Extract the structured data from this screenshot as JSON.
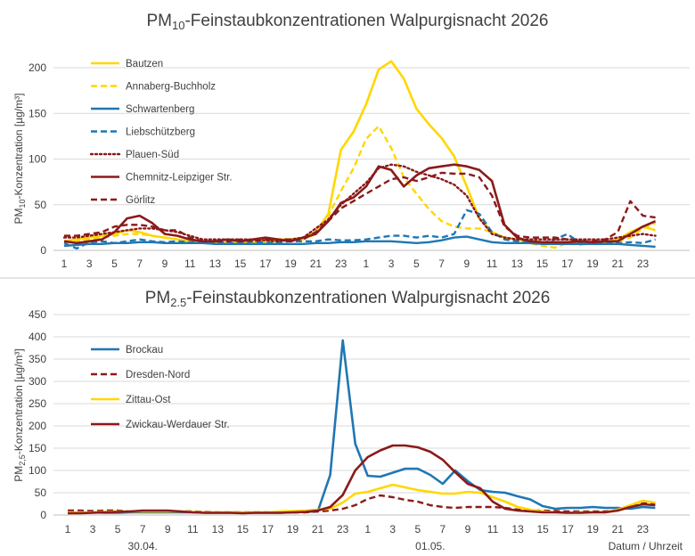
{
  "chart_data": [
    {
      "type": "line",
      "title": "PM",
      "title_sub": "10",
      "title_rest": "-Feinstaubkonzentrationen Walpurgisnacht 2026",
      "ylabel": "PM",
      "ylabel_sub": "10",
      "ylabel_rest": "-Konzentration [µg/m³]",
      "ylim": [
        0,
        200
      ],
      "yticks": [
        "0",
        "50",
        "100",
        "150",
        "200"
      ],
      "xticks": [
        "1",
        "3",
        "5",
        "7",
        "9",
        "11",
        "13",
        "15",
        "17",
        "19",
        "21",
        "23",
        "1",
        "3",
        "5",
        "7",
        "9",
        "11",
        "13",
        "15",
        "17",
        "19",
        "21",
        "23"
      ],
      "x_count": 48,
      "grid": "horizontal",
      "legend_position": "top-left",
      "series": [
        {
          "name": "Bautzen",
          "color": "#ffd700",
          "dash": "solid",
          "width": 2.6,
          "values": [
            10,
            12,
            14,
            16,
            18,
            22,
            20,
            16,
            14,
            12,
            10,
            9,
            8,
            8,
            8,
            9,
            10,
            12,
            12,
            14,
            20,
            40,
            110,
            130,
            160,
            198,
            207,
            188,
            155,
            138,
            123,
            103,
            70,
            35,
            20,
            14,
            12,
            10,
            9,
            9,
            8,
            8,
            8,
            9,
            12,
            20,
            26,
            22
          ]
        },
        {
          "name": "Annaberg-Buchholz",
          "color": "#ffd700",
          "dash": "dashed",
          "width": 2.4,
          "values": [
            10,
            10,
            12,
            14,
            16,
            18,
            18,
            16,
            14,
            12,
            10,
            9,
            9,
            8,
            8,
            8,
            9,
            10,
            11,
            12,
            18,
            38,
            65,
            90,
            122,
            136,
            112,
            80,
            62,
            45,
            32,
            26,
            24,
            24,
            20,
            14,
            12,
            8,
            5,
            3,
            8,
            6,
            8,
            9,
            10,
            14,
            24,
            30
          ]
        },
        {
          "name": "Schwartenberg",
          "color": "#1f77b4",
          "dash": "solid",
          "width": 2.4,
          "values": [
            5,
            6,
            7,
            7,
            8,
            8,
            9,
            9,
            8,
            8,
            8,
            8,
            7,
            7,
            7,
            7,
            7,
            7,
            7,
            7,
            8,
            8,
            9,
            9,
            10,
            10,
            10,
            9,
            8,
            9,
            11,
            14,
            15,
            12,
            9,
            8,
            8,
            8,
            7,
            7,
            7,
            7,
            7,
            7,
            7,
            6,
            5,
            4
          ]
        },
        {
          "name": "Liebschützberg",
          "color": "#1f77b4",
          "dash": "dashed",
          "width": 2.4,
          "values": [
            8,
            2,
            9,
            10,
            8,
            10,
            12,
            10,
            9,
            10,
            9,
            9,
            9,
            8,
            8,
            10,
            8,
            9,
            10,
            10,
            10,
            12,
            11,
            11,
            12,
            14,
            16,
            16,
            14,
            16,
            14,
            18,
            44,
            40,
            20,
            12,
            10,
            9,
            8,
            12,
            18,
            8,
            7,
            8,
            8,
            9,
            8,
            12
          ]
        },
        {
          "name": "Plauen-Süd",
          "color": "#8b1a1a",
          "dash": "dotted",
          "width": 2.4,
          "values": [
            14,
            14,
            16,
            18,
            20,
            22,
            24,
            24,
            22,
            20,
            16,
            12,
            12,
            12,
            12,
            12,
            11,
            10,
            12,
            14,
            24,
            34,
            50,
            62,
            74,
            90,
            94,
            92,
            86,
            82,
            78,
            72,
            60,
            35,
            18,
            14,
            12,
            12,
            12,
            12,
            12,
            12,
            12,
            12,
            14,
            16,
            18,
            16
          ]
        },
        {
          "name": "Chemnitz-Leipziger Str.",
          "color": "#8b1a1a",
          "dash": "solid",
          "width": 2.6,
          "values": [
            10,
            8,
            10,
            12,
            20,
            35,
            38,
            30,
            18,
            16,
            12,
            10,
            10,
            12,
            10,
            12,
            14,
            12,
            10,
            14,
            18,
            32,
            52,
            58,
            70,
            92,
            88,
            70,
            82,
            90,
            92,
            94,
            92,
            88,
            76,
            28,
            14,
            10,
            9,
            9,
            9,
            10,
            9,
            10,
            10,
            18,
            26,
            32
          ]
        },
        {
          "name": "Görlitz",
          "color": "#8b1a1a",
          "dash": "dashed",
          "width": 2.4,
          "values": [
            16,
            16,
            18,
            20,
            26,
            28,
            28,
            26,
            22,
            22,
            14,
            10,
            10,
            10,
            12,
            10,
            12,
            12,
            12,
            12,
            20,
            32,
            46,
            54,
            62,
            70,
            78,
            80,
            76,
            80,
            85,
            84,
            84,
            80,
            60,
            26,
            16,
            14,
            14,
            14,
            12,
            10,
            10,
            12,
            20,
            54,
            38,
            36
          ]
        }
      ]
    },
    {
      "type": "line",
      "title": "PM",
      "title_sub": "2.5",
      "title_rest": "-Feinstaubkonzentrationen Walpurgisnacht 2026",
      "ylabel": "PM",
      "ylabel_sub": "2,5",
      "ylabel_rest": "-Konzentration [µg/m³]",
      "ylim": [
        0,
        450
      ],
      "yticks": [
        "0",
        "50",
        "100",
        "150",
        "200",
        "250",
        "300",
        "350",
        "400",
        "450"
      ],
      "xticks": [
        "1",
        "3",
        "5",
        "7",
        "9",
        "11",
        "13",
        "15",
        "17",
        "19",
        "21",
        "23",
        "1",
        "3",
        "5",
        "7",
        "9",
        "11",
        "13",
        "15",
        "17",
        "19",
        "21",
        "23"
      ],
      "date_labels": [
        "30.04.",
        "01.05."
      ],
      "xlabel": "Datum / Uhrzeit",
      "x_count": 48,
      "grid": "horizontal",
      "legend_position": "top-left",
      "series": [
        {
          "name": "Brockau",
          "color": "#1f77b4",
          "dash": "solid",
          "width": 2.6,
          "values": [
            5,
            5,
            6,
            5,
            5,
            6,
            6,
            6,
            6,
            6,
            6,
            5,
            5,
            5,
            5,
            5,
            5,
            5,
            6,
            7,
            8,
            90,
            392,
            160,
            88,
            86,
            95,
            104,
            104,
            90,
            70,
            100,
            76,
            56,
            52,
            50,
            42,
            35,
            20,
            14,
            16,
            16,
            18,
            16,
            16,
            14,
            18,
            16
          ]
        },
        {
          "name": "Dresden-Nord",
          "color": "#8b1a1a",
          "dash": "dashed",
          "width": 2.4,
          "values": [
            10,
            10,
            9,
            10,
            10,
            8,
            8,
            8,
            8,
            8,
            8,
            7,
            6,
            6,
            6,
            6,
            6,
            6,
            6,
            6,
            8,
            10,
            14,
            22,
            36,
            44,
            40,
            34,
            30,
            22,
            18,
            16,
            18,
            18,
            18,
            16,
            12,
            10,
            10,
            9,
            8,
            8,
            8,
            8,
            10,
            18,
            26,
            26
          ]
        },
        {
          "name": "Zittau-Ost",
          "color": "#ffd700",
          "dash": "solid",
          "width": 2.6,
          "values": [
            6,
            6,
            6,
            7,
            8,
            8,
            8,
            8,
            8,
            8,
            7,
            6,
            6,
            6,
            6,
            6,
            6,
            8,
            9,
            10,
            12,
            14,
            28,
            48,
            52,
            60,
            68,
            62,
            56,
            52,
            48,
            48,
            52,
            50,
            40,
            30,
            18,
            12,
            8,
            6,
            5,
            6,
            6,
            6,
            12,
            22,
            32,
            28
          ]
        },
        {
          "name": "Zwickau-Werdauer Str.",
          "color": "#8b1a1a",
          "dash": "solid",
          "width": 2.6,
          "values": [
            4,
            4,
            5,
            6,
            7,
            8,
            10,
            10,
            10,
            8,
            6,
            5,
            5,
            5,
            4,
            5,
            5,
            5,
            6,
            7,
            10,
            18,
            45,
            100,
            130,
            145,
            156,
            156,
            152,
            142,
            124,
            96,
            70,
            60,
            30,
            14,
            10,
            8,
            6,
            6,
            5,
            5,
            6,
            6,
            10,
            18,
            24,
            22
          ]
        }
      ]
    }
  ]
}
